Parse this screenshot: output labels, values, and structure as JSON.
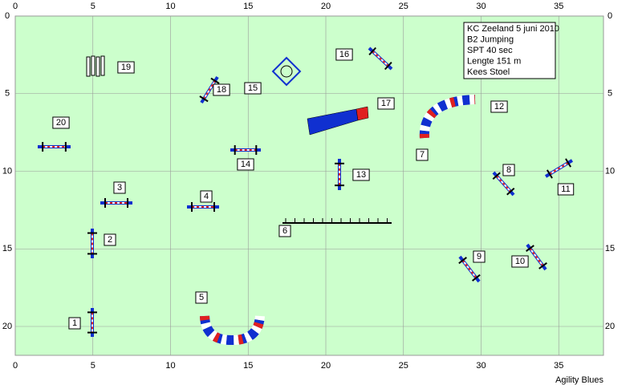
{
  "course": {
    "info": [
      "KC Zeeland 5 juni 2010",
      "B2 Jumping",
      "SPT 40 sec",
      "Lengte 151 m",
      "Kees Stoel"
    ],
    "footer": "Agility Blues",
    "axes": {
      "x_ticks": [
        0,
        5,
        10,
        15,
        20,
        25,
        30,
        35
      ],
      "y_ticks": [
        0,
        5,
        10,
        15,
        20
      ]
    },
    "obstacle_numbers": [
      "1",
      "2",
      "3",
      "4",
      "5",
      "6",
      "7",
      "8",
      "9",
      "10",
      "11",
      "12",
      "13",
      "14",
      "15",
      "16",
      "17",
      "18",
      "19",
      "20"
    ]
  }
}
